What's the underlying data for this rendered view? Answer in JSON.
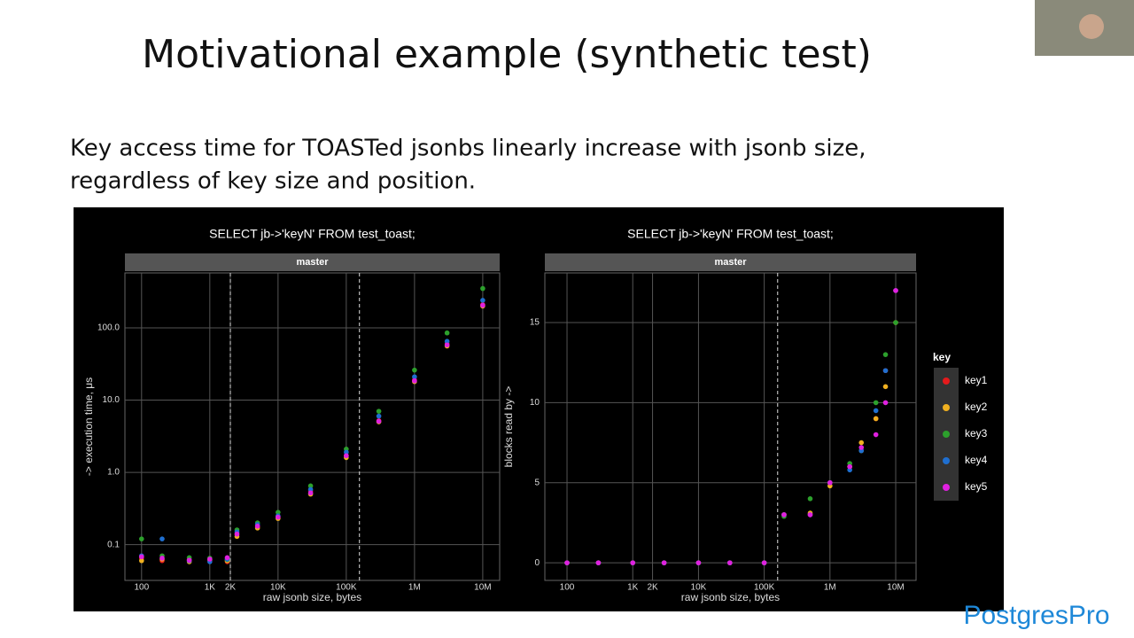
{
  "slide": {
    "title": "Motivational example (synthetic test)",
    "text": [
      "Key access time for TOASTed jsonbs  linearly increase with jsonb size,",
      "regardless of key size and position."
    ],
    "logo": "PostgresPro"
  },
  "chart_data": [
    {
      "type": "scatter",
      "title": "SELECT jb->'keyN' FROM test_toast;",
      "facet": "master",
      "x_label": "raw jsonb size, bytes",
      "y_label": "-> execution time, μs",
      "xlog": true,
      "ylog": true,
      "grid": true,
      "xlim": [
        57,
        17700000
      ],
      "ylim": [
        0.032,
        575
      ],
      "xticks": [
        100,
        {
          "value": 1000,
          "label": "1K"
        },
        {
          "value": 2000,
          "label": "2K"
        },
        {
          "value": 10000,
          "label": "10K"
        },
        {
          "value": 100000,
          "label": "100K"
        },
        {
          "value": 1000000,
          "label": "1M"
        },
        {
          "value": 10000000,
          "label": "10M"
        }
      ],
      "yticks": [
        0.1,
        {
          "value": 1,
          "label": "1.0"
        },
        {
          "value": 10,
          "label": "10.0"
        },
        {
          "value": 100,
          "label": "100.0"
        }
      ],
      "reference_lines": [
        2000,
        156000
      ],
      "x": [
        100,
        200,
        500,
        1000,
        1800,
        2500,
        5000,
        10000,
        30000,
        100000,
        300000,
        1000000,
        3000000,
        10000000
      ],
      "series": [
        {
          "color": "#e41a1c",
          "values": [
            0.065,
            0.06,
            0.062,
            0.06,
            0.058,
            0.14,
            0.18,
            0.24,
            0.55,
            1.7,
            5.2,
            19,
            60,
            210
          ]
        },
        {
          "color": "#f0b020",
          "values": [
            0.06,
            0.063,
            0.058,
            0.062,
            0.06,
            0.13,
            0.17,
            0.23,
            0.5,
            1.6,
            5,
            18,
            56,
            200
          ]
        },
        {
          "color": "#2ca02c",
          "values": [
            0.12,
            0.07,
            0.066,
            0.065,
            0.062,
            0.16,
            0.2,
            0.28,
            0.65,
            2.1,
            7,
            26,
            85,
            350
          ]
        },
        {
          "color": "#1f6fd0",
          "values": [
            0.07,
            0.12,
            0.06,
            0.058,
            0.063,
            0.15,
            0.19,
            0.25,
            0.58,
            1.9,
            6,
            21,
            65,
            240
          ]
        },
        {
          "color": "#e020e0",
          "values": [
            0.068,
            0.065,
            0.061,
            0.063,
            0.066,
            0.14,
            0.18,
            0.24,
            0.52,
            1.7,
            5.1,
            18.5,
            58,
            205
          ]
        }
      ]
    },
    {
      "type": "scatter",
      "title": "SELECT jb->'keyN' FROM test_toast;",
      "facet": "master",
      "x_label": "raw jsonb size, bytes",
      "y_label": "blocks read by ->",
      "xlog": true,
      "ylog": false,
      "grid": true,
      "xlim": [
        46,
        20400000
      ],
      "ylim": [
        -1.1,
        18.1
      ],
      "xticks": [
        100,
        {
          "value": 1000,
          "label": "1K"
        },
        {
          "value": 2000,
          "label": "2K"
        },
        {
          "value": 10000,
          "label": "10K"
        },
        {
          "value": 100000,
          "label": "100K"
        },
        {
          "value": 1000000,
          "label": "1M"
        },
        {
          "value": 10000000,
          "label": "10M"
        }
      ],
      "yticks": [
        0,
        5,
        10,
        15
      ],
      "reference_lines": [
        160000
      ],
      "legend_title": "key",
      "x": [
        100,
        300,
        1000,
        3000,
        10000,
        30000,
        100000,
        200000,
        500000,
        1000000,
        2000000,
        3000000,
        5000000,
        7000000,
        10000000
      ],
      "series": [
        {
          "name": "key1",
          "color": "#e41a1c",
          "values": [
            0,
            0,
            0,
            0,
            0,
            0,
            0,
            3,
            3,
            5,
            6,
            7,
            9,
            12,
            17
          ]
        },
        {
          "name": "key2",
          "color": "#f0b020",
          "values": [
            0,
            0,
            0,
            0,
            0,
            0,
            0,
            3,
            3.1,
            4.8,
            6,
            7.5,
            9,
            11,
            15
          ]
        },
        {
          "name": "key3",
          "color": "#2ca02c",
          "values": [
            0,
            0,
            0,
            0,
            0,
            0,
            0,
            2.9,
            4,
            5,
            6.2,
            7,
            10,
            13,
            15
          ]
        },
        {
          "name": "key4",
          "color": "#1f6fd0",
          "values": [
            0,
            0,
            0,
            0,
            0,
            0,
            0,
            3,
            3,
            5,
            5.8,
            7,
            9.5,
            12,
            17
          ]
        },
        {
          "name": "key5",
          "color": "#e020e0",
          "values": [
            0,
            0,
            0,
            0,
            0,
            0,
            0,
            3,
            3,
            5,
            6,
            7.2,
            8,
            10,
            17
          ]
        }
      ]
    }
  ]
}
